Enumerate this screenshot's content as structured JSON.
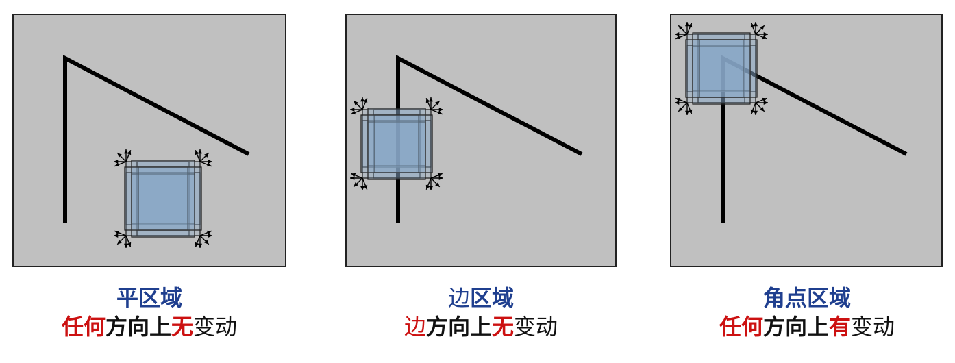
{
  "panels": [
    {
      "title": [
        {
          "text": "平区域",
          "color": "blue",
          "bold": true
        }
      ],
      "description": [
        {
          "text": "任何",
          "color": "red",
          "bold": true
        },
        {
          "text": "方向上",
          "color": "black",
          "bold": true
        },
        {
          "text": "无",
          "color": "red",
          "bold": true
        },
        {
          "text": "变动",
          "color": "black",
          "bold": false
        }
      ]
    },
    {
      "title": [
        {
          "text": "边",
          "color": "blue",
          "bold": false
        },
        {
          "text": "区域",
          "color": "blue",
          "bold": true
        }
      ],
      "description": [
        {
          "text": "边",
          "color": "red",
          "bold": false
        },
        {
          "text": "方向上",
          "color": "black",
          "bold": true
        },
        {
          "text": "无",
          "color": "red",
          "bold": true
        },
        {
          "text": "变动",
          "color": "black",
          "bold": false
        }
      ]
    },
    {
      "title": [
        {
          "text": "角点区域",
          "color": "blue",
          "bold": true
        }
      ],
      "description": [
        {
          "text": "任何",
          "color": "red",
          "bold": true
        },
        {
          "text": "方向上",
          "color": "black",
          "bold": true
        },
        {
          "text": "有",
          "color": "red",
          "bold": true
        },
        {
          "text": "变动",
          "color": "black",
          "bold": false
        }
      ]
    }
  ],
  "colors": {
    "panel_fill": "#c0c0c0",
    "panel_border": "#222222",
    "line": "#000000",
    "window_fill": "#8aa8c8",
    "title_blue": "#1f3f8f",
    "accent_red": "#cc1111"
  }
}
